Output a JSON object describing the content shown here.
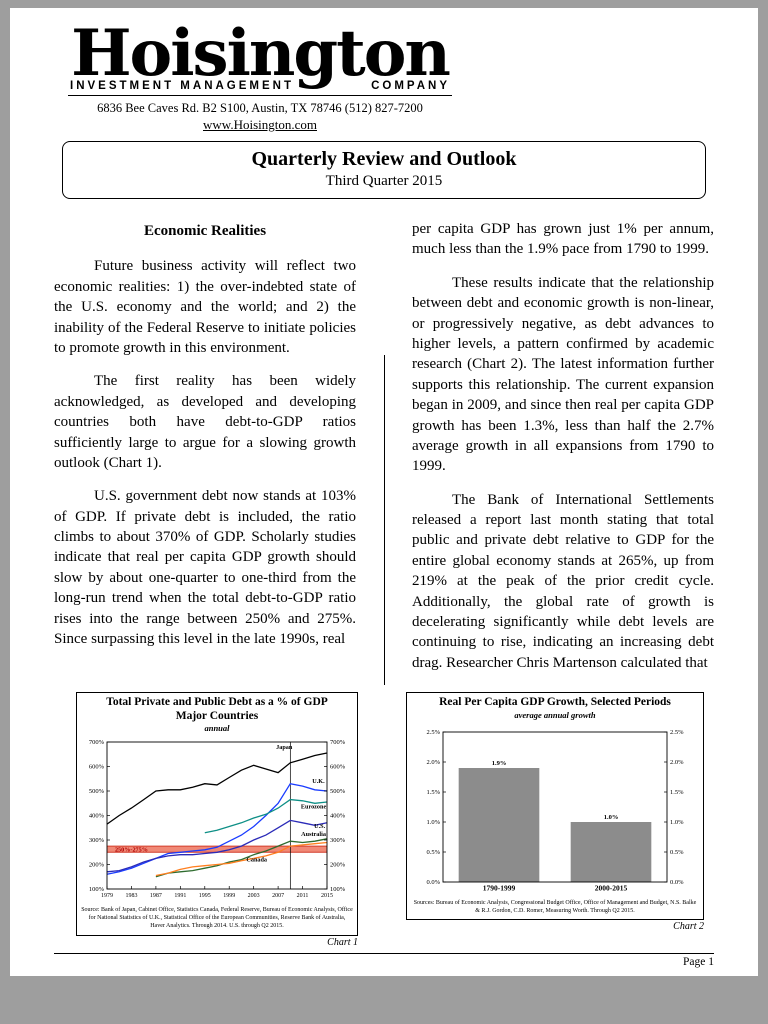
{
  "meta": {
    "background_color": "#9e9e9e",
    "page_color": "#ffffff"
  },
  "header": {
    "logo": "Hoisington",
    "firm_line_left": "INVESTMENT MANAGEMENT",
    "firm_line_right": "COMPANY",
    "address": "6836 Bee Caves Rd. B2 S100, Austin, TX 78746 (512) 827-7200",
    "website": "www.Hoisington.com"
  },
  "masthead": {
    "title": "Quarterly Review and Outlook",
    "subtitle": "Third Quarter 2015"
  },
  "article": {
    "left": {
      "heading": "Economic Realities",
      "p1": "Future business activity will reflect two economic realities: 1) the over-indebted state of the U.S. economy and the world; and 2) the inability of the Federal Reserve to initiate policies to promote growth in this environment.",
      "p2": "The first reality has been widely acknowledged, as developed and developing countries both have debt-to-GDP ratios sufficiently large to argue for a slowing growth outlook (Chart 1).",
      "p3": "U.S. government debt now stands at 103% of GDP. If private debt is included, the ratio climbs to about 370% of GDP. Scholarly studies indicate that real per capita GDP growth should slow by about one-quarter to one-third from the long-run trend when the total debt-to-GDP ratio rises into the range between 250% and 275%. Since surpassing this level in the late 1990s, real"
    },
    "right": {
      "p1": "per capita GDP has grown just 1% per annum, much less than the 1.9% pace from 1790 to 1999.",
      "p2": "These results indicate that the relationship between debt and economic growth is non-linear, or progressively negative, as debt advances to higher levels, a pattern confirmed by academic research (Chart 2). The latest information further supports this relationship. The current expansion began in 2009, and since then real per capita GDP growth has been 1.3%, less than half the 2.7% average growth in all expansions from 1790 to 1999.",
      "p3": "The Bank of International Settlements released a report last month stating that total public and private debt relative to GDP for the entire global economy stands at 265%, up from 219% at the peak of the prior credit cycle. Additionally, the global rate of growth is decelerating significantly while debt levels are continuing to rise, indicating an increasing debt drag. Researcher Chris Martenson calculated that"
    }
  },
  "footer": {
    "page_label": "Page 1"
  },
  "chart_data": [
    {
      "type": "line",
      "title": "Total Private and Public Debt as a % of GDP",
      "subtitle": "Major Countries",
      "note": "annual",
      "chart_label": "Chart 1",
      "source": "Source: Bank of Japan, Cabinet Office, Statistics Canada, Federal Reserve, Bureau of Economic Analysis, Office for National Statistics of U.K., Statistical Office of the European Communities, Reserve Bank of Australia, Haver Analytics. Through 2014. U.S. through Q2 2015.",
      "ylim": [
        100,
        700
      ],
      "ytick_step": 100,
      "y_suffix": "%",
      "y_decimals": 0,
      "x": [
        1979,
        1981,
        1983,
        1985,
        1987,
        1989,
        1991,
        1993,
        1995,
        1997,
        1999,
        2001,
        2003,
        2005,
        2007,
        2009,
        2011,
        2013,
        2015
      ],
      "xticks": [
        1979,
        1983,
        1987,
        1991,
        1995,
        1999,
        2003,
        2007,
        2011,
        2015
      ],
      "vline": 2009,
      "band": {
        "from": 250,
        "to": 275,
        "label": "250%-275%",
        "label_year": 1983,
        "fill": "#f08976",
        "edge": "#d23b2a",
        "label_color": "#b00000"
      },
      "series": [
        {
          "name": "Japan",
          "color": "#000000",
          "label_at": [
            2008,
            672
          ],
          "values": [
            365,
            400,
            430,
            465,
            500,
            505,
            505,
            515,
            530,
            525,
            555,
            585,
            605,
            590,
            575,
            615,
            630,
            645,
            655
          ]
        },
        {
          "name": "U.K.",
          "color": "#1a3cff",
          "label_at": [
            2013.6,
            532
          ],
          "values": [
            160,
            170,
            185,
            205,
            225,
            245,
            250,
            255,
            260,
            270,
            295,
            320,
            355,
            400,
            450,
            530,
            520,
            505,
            500
          ]
        },
        {
          "name": "Eurozone",
          "color": "#0e8f86",
          "label_at": [
            2012.8,
            428
          ],
          "values": [
            null,
            null,
            null,
            null,
            null,
            null,
            null,
            null,
            330,
            340,
            355,
            370,
            390,
            405,
            430,
            465,
            460,
            450,
            455
          ]
        },
        {
          "name": "U.S.",
          "color": "#2b2bb8",
          "label_at": [
            2013.8,
            348
          ],
          "values": [
            170,
            175,
            190,
            210,
            225,
            235,
            240,
            240,
            245,
            250,
            260,
            275,
            300,
            320,
            350,
            380,
            370,
            360,
            370
          ]
        },
        {
          "name": "Australia",
          "color": "#2e6b2e",
          "label_at": [
            2012.8,
            316
          ],
          "values": [
            null,
            null,
            null,
            null,
            150,
            165,
            170,
            175,
            185,
            195,
            210,
            220,
            240,
            255,
            275,
            295,
            290,
            295,
            305
          ]
        },
        {
          "name": "Canada",
          "color": "#ff7f1f",
          "label_at": [
            2003.5,
            212
          ],
          "values": [
            null,
            null,
            null,
            null,
            155,
            165,
            180,
            190,
            195,
            200,
            205,
            215,
            225,
            235,
            250,
            275,
            280,
            285,
            290
          ]
        }
      ]
    },
    {
      "type": "bar",
      "title": "Real Per Capita GDP Growth, Selected Periods",
      "subtitle": "average annual growth",
      "chart_label": "Chart 2",
      "source": "Sources: Bureau of Economic Analysis, Congressional Budget Office, Office of Management and Budget, N.S. Balke & R.J. Gordon, C.D. Romer, Measuring Worth. Through Q2 2015.",
      "categories": [
        "1790-1999",
        "2000-2015"
      ],
      "values": [
        1.9,
        1.0
      ],
      "value_labels": [
        "1.9%",
        "1.0%"
      ],
      "ylim": [
        0,
        2.5
      ],
      "ytick_step": 0.5,
      "y_suffix": "%",
      "y_decimals": 1,
      "bar_color": "#8c8c8c"
    }
  ]
}
